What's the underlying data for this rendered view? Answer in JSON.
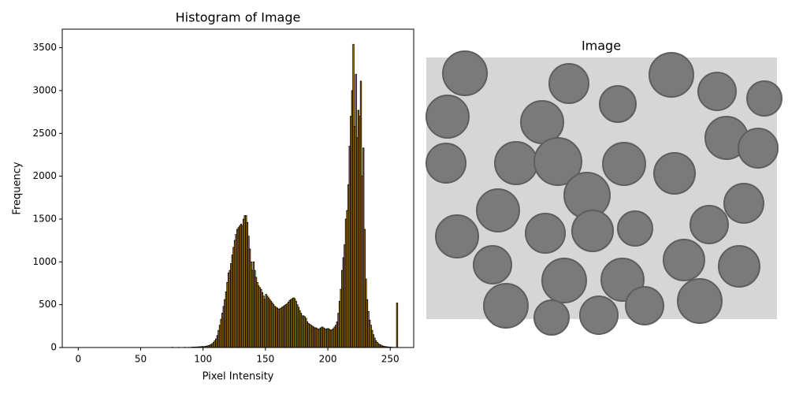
{
  "chart_data": {
    "type": "histogram",
    "title": "Histogram of Image",
    "xlabel": "Pixel Intensity",
    "ylabel": "Frequency",
    "bins": [
      0,
      1,
      2,
      3,
      4,
      5,
      6,
      7,
      8,
      9,
      10,
      11,
      12,
      13,
      14,
      15,
      16,
      17,
      18,
      19,
      20,
      21,
      22,
      23,
      24,
      25,
      26,
      27,
      28,
      29,
      30,
      31,
      32,
      33,
      34,
      35,
      36,
      37,
      38,
      39,
      40,
      41,
      42,
      43,
      44,
      45,
      46,
      47,
      48,
      49,
      50,
      51,
      52,
      53,
      54,
      55,
      56,
      57,
      58,
      59,
      60,
      61,
      62,
      63,
      64,
      65,
      66,
      67,
      68,
      69,
      70,
      71,
      72,
      73,
      74,
      75,
      76,
      77,
      78,
      79,
      80,
      81,
      82,
      83,
      84,
      85,
      86,
      87,
      88,
      89,
      90,
      91,
      92,
      93,
      94,
      95,
      96,
      97,
      98,
      99,
      100,
      101,
      102,
      103,
      104,
      105,
      106,
      107,
      108,
      109,
      110,
      111,
      112,
      113,
      114,
      115,
      116,
      117,
      118,
      119,
      120,
      121,
      122,
      123,
      124,
      125,
      126,
      127,
      128,
      129,
      130,
      131,
      132,
      133,
      134,
      135,
      136,
      137,
      138,
      139,
      140,
      141,
      142,
      143,
      144,
      145,
      146,
      147,
      148,
      149,
      150,
      151,
      152,
      153,
      154,
      155,
      156,
      157,
      158,
      159,
      160,
      161,
      162,
      163,
      164,
      165,
      166,
      167,
      168,
      169,
      170,
      171,
      172,
      173,
      174,
      175,
      176,
      177,
      178,
      179,
      180,
      181,
      182,
      183,
      184,
      185,
      186,
      187,
      188,
      189,
      190,
      191,
      192,
      193,
      194,
      195,
      196,
      197,
      198,
      199,
      200,
      201,
      202,
      203,
      204,
      205,
      206,
      207,
      208,
      209,
      210,
      211,
      212,
      213,
      214,
      215,
      216,
      217,
      218,
      219,
      220,
      221,
      222,
      223,
      224,
      225,
      226,
      227,
      228,
      229,
      230,
      231,
      232,
      233,
      234,
      235,
      236,
      237,
      238,
      239,
      240,
      241,
      242,
      243,
      244,
      245,
      246,
      247,
      248,
      249,
      250,
      251,
      252,
      253,
      254,
      255,
      256
    ],
    "values": [
      0,
      0,
      0,
      0,
      0,
      0,
      0,
      0,
      0,
      0,
      0,
      0,
      0,
      0,
      0,
      0,
      0,
      0,
      0,
      0,
      0,
      0,
      0,
      0,
      0,
      0,
      0,
      0,
      0,
      0,
      0,
      0,
      0,
      0,
      0,
      0,
      0,
      0,
      0,
      0,
      0,
      0,
      0,
      0,
      0,
      0,
      0,
      0,
      0,
      0,
      0,
      0,
      0,
      0,
      0,
      0,
      0,
      0,
      0,
      0,
      0,
      0,
      0,
      0,
      0,
      0,
      0,
      0,
      0,
      0,
      0,
      0,
      0,
      0,
      0,
      3,
      0,
      0,
      0,
      0,
      2,
      0,
      0,
      0,
      0,
      3,
      0,
      0,
      2,
      0,
      3,
      4,
      5,
      5,
      6,
      6,
      8,
      8,
      10,
      12,
      10,
      12,
      15,
      18,
      22,
      28,
      35,
      45,
      60,
      80,
      100,
      140,
      200,
      260,
      330,
      400,
      480,
      560,
      650,
      760,
      870,
      900,
      980,
      1080,
      1170,
      1250,
      1320,
      1380,
      1400,
      1420,
      1440,
      1420,
      1500,
      1540,
      1540,
      1460,
      1300,
      1150,
      1000,
      900,
      1000,
      900,
      820,
      760,
      720,
      700,
      680,
      640,
      600,
      560,
      620,
      600,
      580,
      560,
      540,
      520,
      500,
      480,
      470,
      460,
      450,
      450,
      460,
      470,
      480,
      490,
      500,
      510,
      530,
      550,
      560,
      570,
      580,
      570,
      540,
      500,
      470,
      430,
      400,
      370,
      370,
      360,
      340,
      300,
      280,
      270,
      260,
      250,
      240,
      230,
      230,
      220,
      210,
      220,
      230,
      240,
      230,
      220,
      210,
      220,
      220,
      210,
      200,
      210,
      220,
      240,
      260,
      300,
      400,
      540,
      680,
      900,
      1050,
      1200,
      1500,
      1600,
      1900,
      2350,
      2700,
      3000,
      3540,
      2580,
      3190,
      2450,
      2770,
      2700,
      3110,
      2000,
      2330,
      1380,
      800,
      560,
      420,
      320,
      260,
      200,
      150,
      110,
      80,
      60,
      45,
      35,
      28,
      20,
      15,
      12,
      10,
      8,
      6,
      5,
      4,
      3,
      2,
      2,
      1,
      520
    ],
    "color": "#b8860b",
    "edgecolor": "#000000",
    "xlim": [
      -12.8,
      268.8
    ],
    "ylim": [
      0,
      3717
    ],
    "xticks": [
      0,
      50,
      100,
      150,
      200,
      250
    ],
    "yticks": [
      0,
      500,
      1000,
      1500,
      2000,
      2500,
      3000,
      3500
    ]
  },
  "image": {
    "title": "Image"
  }
}
